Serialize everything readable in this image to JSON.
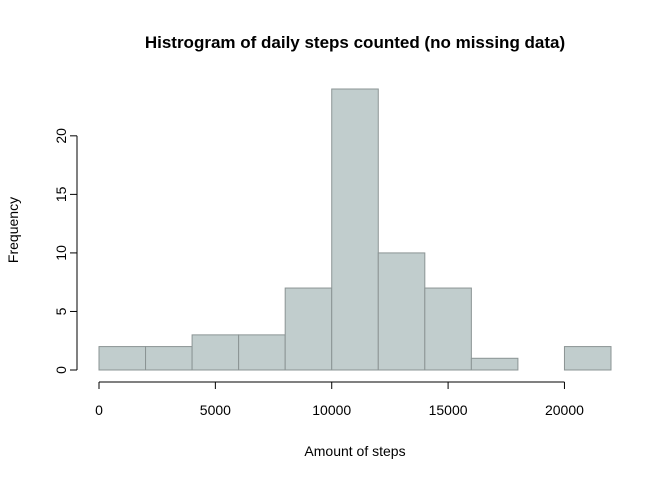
{
  "chart_data": {
    "type": "histogram",
    "title": "Histrogram of daily steps counted (no missing data)",
    "xlabel": "Amount of steps",
    "ylabel": "Frequency",
    "bins": [
      {
        "start": 0,
        "end": 2000,
        "count": 2
      },
      {
        "start": 2000,
        "end": 4000,
        "count": 2
      },
      {
        "start": 4000,
        "end": 6000,
        "count": 3
      },
      {
        "start": 6000,
        "end": 8000,
        "count": 3
      },
      {
        "start": 8000,
        "end": 10000,
        "count": 7
      },
      {
        "start": 10000,
        "end": 12000,
        "count": 24
      },
      {
        "start": 12000,
        "end": 14000,
        "count": 10
      },
      {
        "start": 14000,
        "end": 16000,
        "count": 7
      },
      {
        "start": 16000,
        "end": 18000,
        "count": 1
      },
      {
        "start": 18000,
        "end": 20000,
        "count": 0
      },
      {
        "start": 20000,
        "end": 22000,
        "count": 2
      }
    ],
    "x_ticks": [
      {
        "value": 0,
        "label": "0"
      },
      {
        "value": 5000,
        "label": "5000"
      },
      {
        "value": 10000,
        "label": "10000"
      },
      {
        "value": 15000,
        "label": "15000"
      },
      {
        "value": 20000,
        "label": "20000"
      }
    ],
    "y_ticks": [
      {
        "value": 0,
        "label": "0"
      },
      {
        "value": 5,
        "label": "5"
      },
      {
        "value": 10,
        "label": "10"
      },
      {
        "value": 15,
        "label": "15"
      },
      {
        "value": 20,
        "label": "20"
      }
    ],
    "xlim": [
      0,
      22000
    ],
    "ylim": [
      0,
      24
    ],
    "grid": false,
    "bar_fill": "#c1cdcd",
    "bar_stroke": "#8b9494"
  }
}
